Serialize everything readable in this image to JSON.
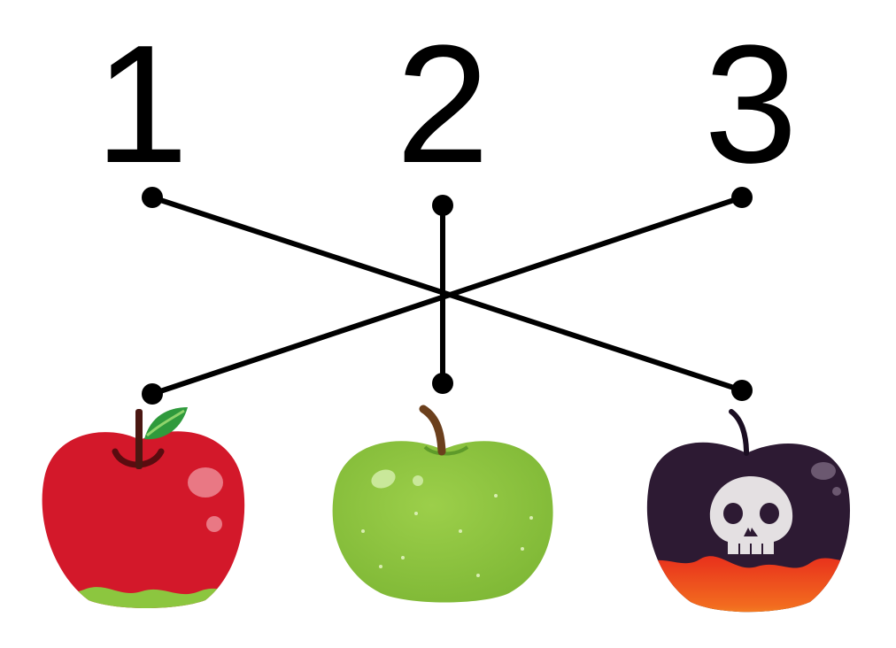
{
  "labels": [
    "1",
    "2",
    "3"
  ],
  "apples": [
    {
      "kind": "red apple",
      "icon": "red-apple-icon"
    },
    {
      "kind": "green apple",
      "icon": "green-apple-icon"
    },
    {
      "kind": "poison apple",
      "icon": "poison-apple-skull-icon"
    }
  ],
  "connections": [
    {
      "number": "1",
      "apple_index": 3
    },
    {
      "number": "2",
      "apple_index": 2
    },
    {
      "number": "3",
      "apple_index": 1
    }
  ],
  "colors": {
    "line": "#000000",
    "red_apple": "#d3182a",
    "green_apple": "#8cc63f",
    "poison_apple": "#2d1a33",
    "lava": "#ef4a1d"
  }
}
